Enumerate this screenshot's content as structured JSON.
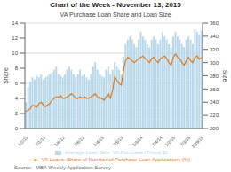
{
  "chart_data": {
    "type": "bar",
    "title": "Chart of the Week - November 13, 2015",
    "subtitle": "VA Purchase Loan Share and Loan Size",
    "source": "Source:  MBA Weekly Application Survey",
    "ylabel": "Share",
    "y2label": "Size",
    "categories": [
      "1/2/11",
      null,
      null,
      null,
      null,
      null,
      null,
      null,
      "7/1/11",
      null,
      null,
      null,
      null,
      null,
      null,
      null,
      null,
      "1/6/12",
      null,
      null,
      null,
      null,
      null,
      null,
      null,
      null,
      "7/6/12",
      null,
      null,
      null,
      null,
      null,
      null,
      null,
      null,
      "1/4/13",
      null,
      null,
      null,
      null,
      null,
      null,
      null,
      null,
      "7/5/13",
      null,
      null,
      null,
      null,
      null,
      null,
      null,
      null,
      "1/3/14",
      null,
      null,
      null,
      null,
      null,
      null,
      null,
      null,
      "7/4/14",
      null,
      null,
      null,
      null,
      null,
      "1/2/15",
      null,
      null,
      null,
      null,
      null,
      null,
      "7/3/15",
      null,
      null,
      null,
      null,
      null,
      "10/9/15"
    ],
    "series": [
      {
        "name": "Average Loan Size: VA Purchase (Thous.$)",
        "type": "bar",
        "color": "#b8d8ea",
        "values": [
          3.5,
          5.5,
          6.2,
          6.8,
          6.5,
          7.0,
          6.8,
          7.2,
          6.5,
          6.8,
          7.0,
          7.2,
          7.5,
          7.8,
          8.2,
          7.2,
          7.0,
          6.8,
          7.2,
          7.8,
          8.2,
          7.8,
          7.2,
          6.8,
          7.2,
          7.8,
          7.0,
          7.2,
          6.8,
          6.5,
          7.2,
          8.2,
          8.8,
          7.8,
          7.2,
          7.0,
          6.8,
          7.8,
          8.2,
          7.2,
          7.8,
          8.8,
          8.2,
          7.8,
          7.2,
          9.5,
          11.2,
          11.8,
          12.2,
          11.8,
          11.2,
          10.8,
          11.8,
          12.8,
          12.2,
          11.8,
          11.2,
          10.8,
          11.8,
          12.2,
          11.8,
          11.2,
          11.8,
          12.8,
          12.2,
          11.8,
          11.2,
          10.8,
          12.2,
          12.8,
          12.2,
          11.8,
          11.2,
          10.8,
          11.8,
          12.2,
          11.8,
          11.2,
          13.2,
          12.8,
          12.5,
          13.0
        ]
      },
      {
        "name": "VA Loans: Share of Number of Purchase Loan Applications (%)",
        "type": "line",
        "color": "#e07820",
        "axis": "y2",
        "values": [
          226,
          228,
          230,
          236,
          234,
          232,
          238,
          240,
          236,
          233,
          236,
          238,
          243,
          246,
          248,
          248,
          250,
          246,
          246,
          248,
          250,
          253,
          250,
          246,
          246,
          248,
          246,
          248,
          246,
          246,
          248,
          250,
          253,
          248,
          246,
          246,
          243,
          248,
          253,
          246,
          258,
          278,
          273,
          268,
          266,
          288,
          303,
          308,
          306,
          303,
          300,
          303,
          306,
          308,
          310,
          306,
          303,
          300,
          306,
          308,
          303,
          300,
          306,
          308,
          310,
          306,
          300,
          296,
          308,
          313,
          308,
          306,
          300,
          296,
          303,
          308,
          303,
          300,
          308,
          310,
          305,
          308
        ]
      }
    ],
    "ylim": [
      0,
      14
    ],
    "yticks": [
      0,
      2,
      4,
      6,
      8,
      10,
      12,
      14
    ],
    "y2lim": [
      200,
      360
    ],
    "y2ticks": [
      200,
      220,
      240,
      260,
      280,
      300,
      320,
      340,
      360
    ],
    "grid": true,
    "legend": "bottom"
  }
}
